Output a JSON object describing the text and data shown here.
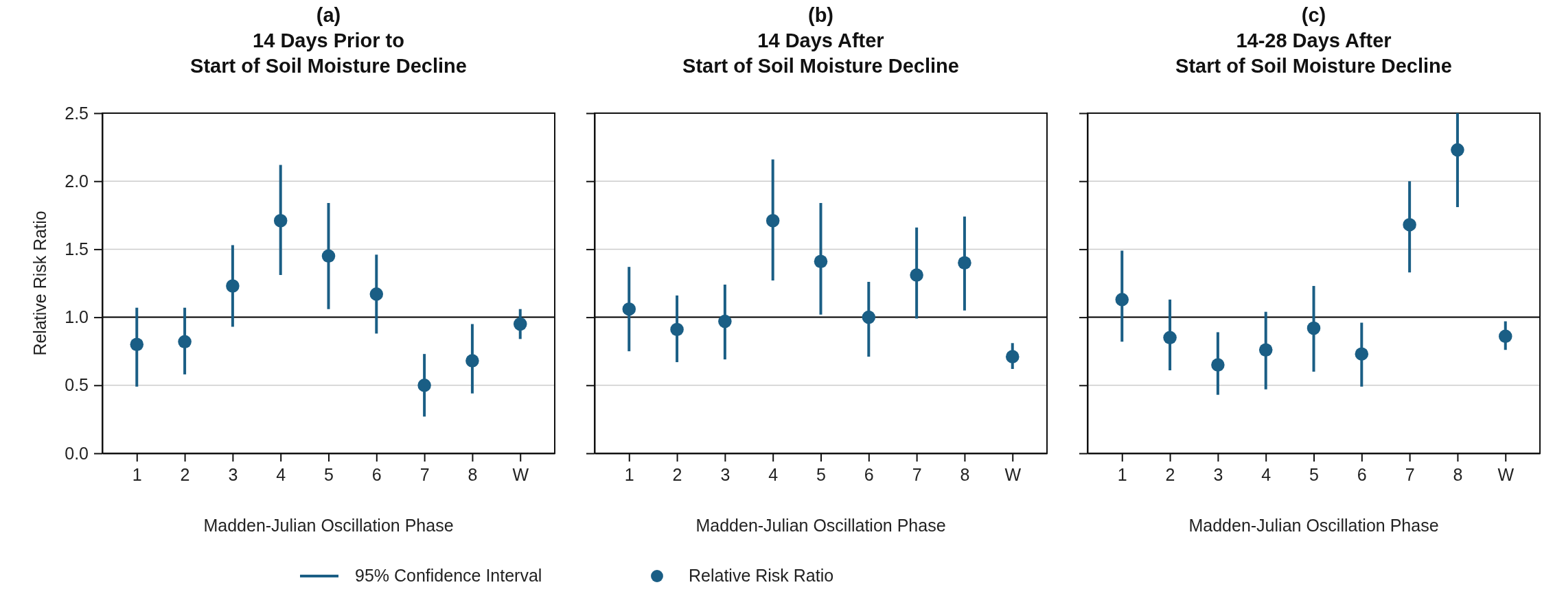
{
  "chart_data": [
    {
      "type": "scatter",
      "title": "(a)\n14 Days Prior to\nStart of Soil Moisture Decline",
      "xlabel": "Madden-Julian Oscillation Phase",
      "ylabel": "Relative Risk Ratio",
      "categories": [
        "1",
        "2",
        "3",
        "4",
        "5",
        "6",
        "7",
        "8",
        "W"
      ],
      "ylim": [
        0,
        2.5
      ],
      "yticks": [
        {
          "value": 0,
          "label": "0.0"
        },
        {
          "value": 0.5,
          "label": "0.5"
        },
        {
          "value": 1,
          "label": "1.0"
        },
        {
          "value": 1.5,
          "label": "1.5"
        },
        {
          "value": 2,
          "label": "2.0"
        },
        {
          "value": 2.5,
          "label": "2.5"
        }
      ],
      "grid": "y",
      "marker": "circle",
      "legend": "bottom",
      "annotations": [
        "95% Confidence Interval"
      ],
      "ref_lines": [
        {
          "axis": "y",
          "value": 1,
          "color": "#000000"
        }
      ],
      "series": [
        {
          "name": "Relative Risk Ratio",
          "color": "#1a5e85",
          "values": [
            0.8,
            0.82,
            1.23,
            1.71,
            1.45,
            1.17,
            0.5,
            0.68,
            0.95
          ],
          "errors": [
            [
              0.49,
              1.07
            ],
            [
              0.58,
              1.07
            ],
            [
              0.93,
              1.53
            ],
            [
              1.31,
              2.12
            ],
            [
              1.06,
              1.84
            ],
            [
              0.88,
              1.46
            ],
            [
              0.27,
              0.73
            ],
            [
              0.44,
              0.95
            ],
            [
              0.84,
              1.06
            ]
          ]
        }
      ]
    },
    {
      "type": "scatter",
      "title": "(b)\n14 Days After\nStart of Soil Moisture Decline",
      "xlabel": "Madden-Julian Oscillation Phase",
      "categories": [
        "1",
        "2",
        "3",
        "4",
        "5",
        "6",
        "7",
        "8",
        "W"
      ],
      "ylim": [
        0,
        2.5
      ],
      "yticks": [
        0,
        0.5,
        1,
        1.5,
        2,
        2.5
      ],
      "tick_labels": "x",
      "grid": "y",
      "marker": "circle",
      "ref_lines": [
        {
          "axis": "y",
          "value": 1,
          "color": "#000000"
        }
      ],
      "series": [
        {
          "color": "#1a5e85",
          "values": [
            1.06,
            0.91,
            0.97,
            1.71,
            1.41,
            1.0,
            1.31,
            1.4,
            0.71
          ],
          "errors": [
            [
              0.75,
              1.37
            ],
            [
              0.67,
              1.16
            ],
            [
              0.69,
              1.24
            ],
            [
              1.27,
              2.16
            ],
            [
              1.02,
              1.84
            ],
            [
              0.71,
              1.26
            ],
            [
              0.99,
              1.66
            ],
            [
              1.05,
              1.74
            ],
            [
              0.62,
              0.81
            ]
          ]
        }
      ]
    },
    {
      "type": "scatter",
      "title": "(c)\n14-28 Days After\nStart of Soil Moisture Decline",
      "xlabel": "Madden-Julian Oscillation Phase",
      "categories": [
        "1",
        "2",
        "3",
        "4",
        "5",
        "6",
        "7",
        "8",
        "W"
      ],
      "ylim": [
        0,
        2.5
      ],
      "yticks": [
        0,
        0.5,
        1,
        1.5,
        2,
        2.5
      ],
      "tick_labels": "x",
      "grid": "y",
      "marker": "circle",
      "ref_lines": [
        {
          "axis": "y",
          "value": 1,
          "color": "#000000"
        }
      ],
      "series": [
        {
          "color": "#1a5e85",
          "values": [
            1.13,
            0.85,
            0.65,
            0.76,
            0.92,
            0.73,
            1.68,
            2.23,
            0.86
          ],
          "errors": [
            [
              0.82,
              1.49
            ],
            [
              0.61,
              1.13
            ],
            [
              0.43,
              0.89
            ],
            [
              0.47,
              1.04
            ],
            [
              0.6,
              1.23
            ],
            [
              0.49,
              0.96
            ],
            [
              1.33,
              2.0
            ],
            [
              1.81,
              2.5
            ],
            [
              0.76,
              0.97
            ]
          ]
        }
      ]
    }
  ]
}
